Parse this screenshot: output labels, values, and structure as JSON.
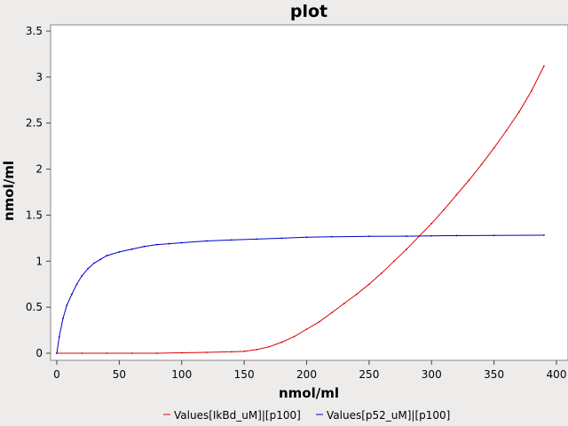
{
  "chart_data": {
    "type": "line",
    "title": "plot",
    "xlabel": "nmol/ml",
    "ylabel": "nmol/ml",
    "xlim": [
      0,
      400
    ],
    "ylim": [
      0,
      3.5
    ],
    "xticks": [
      0,
      50,
      100,
      150,
      200,
      250,
      300,
      350,
      400
    ],
    "yticks": [
      0,
      0.5,
      1,
      1.5,
      2,
      2.5,
      3,
      3.5
    ],
    "xtick_labels": [
      "0",
      "50",
      "100",
      "150",
      "200",
      "250",
      "300",
      "350",
      "400"
    ],
    "ytick_labels": [
      "0",
      "0.5",
      "1",
      "1.5",
      "2",
      "2.5",
      "3",
      "3.5"
    ],
    "grid": false,
    "legend_position": "bottom",
    "series": [
      {
        "name": "Values[IkBd_uM]|[p100]",
        "color": "#dd0000",
        "x": [
          0,
          20,
          40,
          60,
          80,
          100,
          120,
          140,
          150,
          160,
          170,
          180,
          190,
          200,
          210,
          220,
          230,
          240,
          250,
          260,
          270,
          280,
          290,
          300,
          310,
          320,
          330,
          340,
          350,
          360,
          370,
          380,
          390
        ],
        "y": [
          0,
          0,
          0,
          0,
          0,
          0.005,
          0.01,
          0.015,
          0.02,
          0.04,
          0.07,
          0.12,
          0.18,
          0.26,
          0.34,
          0.44,
          0.54,
          0.64,
          0.75,
          0.87,
          1.0,
          1.13,
          1.27,
          1.41,
          1.56,
          1.72,
          1.88,
          2.05,
          2.23,
          2.42,
          2.62,
          2.85,
          3.12
        ]
      },
      {
        "name": "Values[p52_uM]|[p100]",
        "color": "#0000cc",
        "x": [
          0,
          2,
          5,
          8,
          12,
          16,
          20,
          25,
          30,
          35,
          40,
          50,
          60,
          70,
          80,
          90,
          100,
          120,
          140,
          160,
          180,
          200,
          220,
          250,
          280,
          300,
          320,
          350,
          390
        ],
        "y": [
          0,
          0.18,
          0.38,
          0.52,
          0.64,
          0.75,
          0.84,
          0.92,
          0.98,
          1.02,
          1.06,
          1.1,
          1.13,
          1.16,
          1.18,
          1.19,
          1.2,
          1.22,
          1.23,
          1.24,
          1.25,
          1.26,
          1.265,
          1.27,
          1.272,
          1.275,
          1.278,
          1.28,
          1.282
        ]
      }
    ]
  }
}
